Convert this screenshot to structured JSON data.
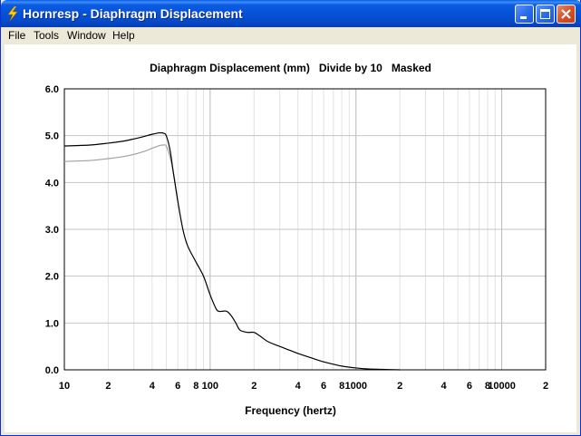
{
  "window": {
    "title": "Hornresp - Diaphragm Displacement",
    "controls": [
      "minimize",
      "maximize",
      "close"
    ]
  },
  "menu": {
    "items": [
      "File",
      "Tools",
      "Window",
      "Help"
    ]
  },
  "chart_data": {
    "type": "line",
    "title": "Diaphragm Displacement (mm)   Divide by 10   Masked",
    "xlabel": "Frequency (hertz)",
    "ylabel": "",
    "x_scale": "log",
    "xlim": [
      10,
      20000
    ],
    "ylim": [
      0,
      6
    ],
    "grid": true,
    "y_tick_labels": [
      "6.0",
      "5.0",
      "4.0",
      "3.0",
      "2.0",
      "1.0",
      "0.0"
    ],
    "y_tick_values": [
      6,
      5,
      4,
      3,
      2,
      1,
      0
    ],
    "x_tick_labels": [
      "10",
      "2",
      "4",
      "6",
      "8",
      "100",
      "2",
      "4",
      "6",
      "8",
      "1000",
      "2",
      "4",
      "6",
      "8",
      "10000",
      "2"
    ],
    "x_tick_values": [
      10,
      20,
      40,
      60,
      80,
      100,
      200,
      400,
      600,
      800,
      1000,
      2000,
      4000,
      6000,
      8000,
      10000,
      20000
    ],
    "series": [
      {
        "color": "#000000",
        "x": [
          10,
          15,
          20,
          25,
          30,
          35,
          40,
          45,
          48,
          50,
          53,
          56,
          60,
          65,
          70,
          80,
          90,
          100,
          110,
          115,
          120,
          130,
          140,
          150,
          160,
          180,
          200,
          220,
          250,
          300,
          350,
          400,
          500,
          600,
          700,
          800,
          1000,
          1200,
          1500,
          2000
        ],
        "y": [
          4.78,
          4.8,
          4.84,
          4.88,
          4.93,
          4.98,
          5.03,
          5.06,
          5.05,
          5.0,
          4.7,
          4.2,
          3.6,
          3.0,
          2.65,
          2.3,
          2.0,
          1.6,
          1.3,
          1.25,
          1.25,
          1.25,
          1.15,
          1.0,
          0.85,
          0.8,
          0.8,
          0.72,
          0.6,
          0.5,
          0.42,
          0.35,
          0.25,
          0.17,
          0.12,
          0.08,
          0.04,
          0.02,
          0.01,
          0.0
        ]
      },
      {
        "color": "#a0a0a0",
        "x": [
          10,
          15,
          20,
          25,
          30,
          35,
          40,
          45,
          48,
          50,
          53,
          56,
          60
        ],
        "y": [
          4.45,
          4.47,
          4.51,
          4.55,
          4.6,
          4.66,
          4.73,
          4.79,
          4.8,
          4.78,
          4.55,
          4.2,
          3.6
        ]
      }
    ]
  }
}
